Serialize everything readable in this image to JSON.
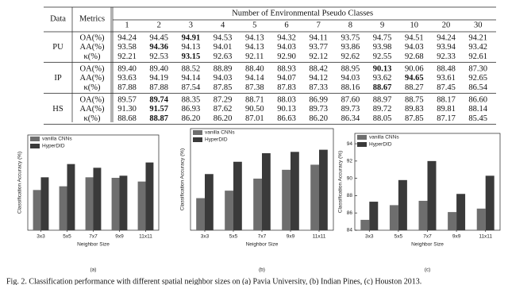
{
  "table": {
    "data_header": "Data",
    "metrics_header": "Metrics",
    "group_header": "Number of Environmental Pseudo Classes",
    "classes": [
      "1",
      "2",
      "3",
      "4",
      "5",
      "6",
      "7",
      "8",
      "9",
      "10",
      "20",
      "30"
    ],
    "groups": [
      {
        "name": "PU",
        "rows": [
          {
            "metric": "OA(%)",
            "best": 2,
            "values": [
              "94.24",
              "94.45",
              "94.91",
              "94.53",
              "94.13",
              "94.32",
              "94.11",
              "93.75",
              "94.75",
              "94.51",
              "94.24",
              "94.21"
            ]
          },
          {
            "metric": "AA(%)",
            "best": 1,
            "values": [
              "93.58",
              "94.36",
              "94.13",
              "94.01",
              "94.13",
              "94.03",
              "93.77",
              "93.86",
              "93.98",
              "94.03",
              "93.94",
              "93.42"
            ]
          },
          {
            "metric": "κ(%)",
            "best": 2,
            "values": [
              "92.21",
              "92.53",
              "93.15",
              "92.63",
              "92.11",
              "92.90",
              "92.12",
              "92.62",
              "92.55",
              "92.68",
              "92.33",
              "92.61"
            ]
          }
        ]
      },
      {
        "name": "IP",
        "rows": [
          {
            "metric": "OA(%)",
            "best": 8,
            "values": [
              "89.40",
              "89.40",
              "88.52",
              "88.89",
              "88.40",
              "88.93",
              "88.42",
              "88.95",
              "90.13",
              "90.06",
              "88.48",
              "87.30"
            ]
          },
          {
            "metric": "AA(%)",
            "best": 9,
            "values": [
              "93.63",
              "94.19",
              "94.14",
              "94.03",
              "94.14",
              "94.07",
              "94.12",
              "94.03",
              "93.62",
              "94.65",
              "93.61",
              "92.65"
            ]
          },
          {
            "metric": "κ(%)",
            "best": 8,
            "values": [
              "87.88",
              "87.88",
              "87.54",
              "87.85",
              "87.38",
              "87.83",
              "87.33",
              "88.16",
              "88.67",
              "88.27",
              "87.45",
              "86.54"
            ]
          }
        ]
      },
      {
        "name": "HS",
        "rows": [
          {
            "metric": "OA(%)",
            "best": 1,
            "values": [
              "89.57",
              "89.74",
              "88.35",
              "87.29",
              "88.71",
              "88.03",
              "86.99",
              "87.60",
              "88.97",
              "88.75",
              "88.17",
              "86.60"
            ]
          },
          {
            "metric": "AA(%)",
            "best": 1,
            "values": [
              "91.30",
              "91.57",
              "86.93",
              "87.62",
              "90.50",
              "90.13",
              "89.73",
              "89.73",
              "89.72",
              "89.83",
              "89.81",
              "88.14"
            ]
          },
          {
            "metric": "κ(%)",
            "best": 1,
            "values": [
              "88.68",
              "88.87",
              "86.20",
              "86.20",
              "87.01",
              "86.63",
              "86.20",
              "86.34",
              "88.05",
              "87.85",
              "87.17",
              "85.45"
            ]
          }
        ]
      }
    ]
  },
  "chart_data": [
    {
      "type": "bar",
      "label": "(a)",
      "xlabel": "Neighbor Size",
      "ylabel": "Classification Accuracy (%)",
      "categories": [
        "3x3",
        "5x5",
        "7x7",
        "9x9",
        "11x11"
      ],
      "ylim": [
        82,
        100
      ],
      "legend": "upper left",
      "series": [
        {
          "name": "vanilla CNNs",
          "color": "#6e6e6e",
          "values": [
            89.6,
            90.3,
            92.0,
            91.9,
            91.2
          ]
        },
        {
          "name": "HyperDID",
          "color": "#3a3a3a",
          "values": [
            92.0,
            94.5,
            93.8,
            92.3,
            94.8
          ]
        }
      ]
    },
    {
      "type": "bar",
      "label": "(b)",
      "xlabel": "Neighbor Size",
      "ylabel": "Classification Accuracy (%)",
      "categories": [
        "3x3",
        "5x5",
        "7x7",
        "9x9",
        "11x11"
      ],
      "ylim": [
        64,
        102
      ],
      "legend": "upper left",
      "series": [
        {
          "name": "vanilla CNNs",
          "color": "#6e6e6e",
          "values": [
            76.0,
            78.8,
            83.3,
            86.6,
            88.5
          ]
        },
        {
          "name": "HyperDID",
          "color": "#3a3a3a",
          "values": [
            85.0,
            89.6,
            92.8,
            93.3,
            94.1
          ]
        }
      ]
    },
    {
      "type": "bar",
      "label": "(c)",
      "xlabel": "Neighbor Size",
      "ylabel": "Classification Accuracy (%)",
      "categories": [
        "3x3",
        "5x5",
        "7x7",
        "9x9",
        "11x11"
      ],
      "ylim": [
        84,
        95.2
      ],
      "yticks": [
        84,
        86,
        88,
        90,
        92,
        94
      ],
      "legend": "upper left",
      "series": [
        {
          "name": "vanilla CNNs",
          "color": "#6e6e6e",
          "values": [
            85.2,
            86.9,
            87.4,
            86.1,
            86.5
          ]
        },
        {
          "name": "HyperDID",
          "color": "#3a3a3a",
          "values": [
            87.3,
            89.8,
            92.0,
            88.2,
            90.3
          ]
        }
      ]
    }
  ],
  "caption": "Fig. 2. Classification performance with different spatial neighbor sizes on (a) Pavia University, (b) Indian Pines, (c) Houston 2013."
}
